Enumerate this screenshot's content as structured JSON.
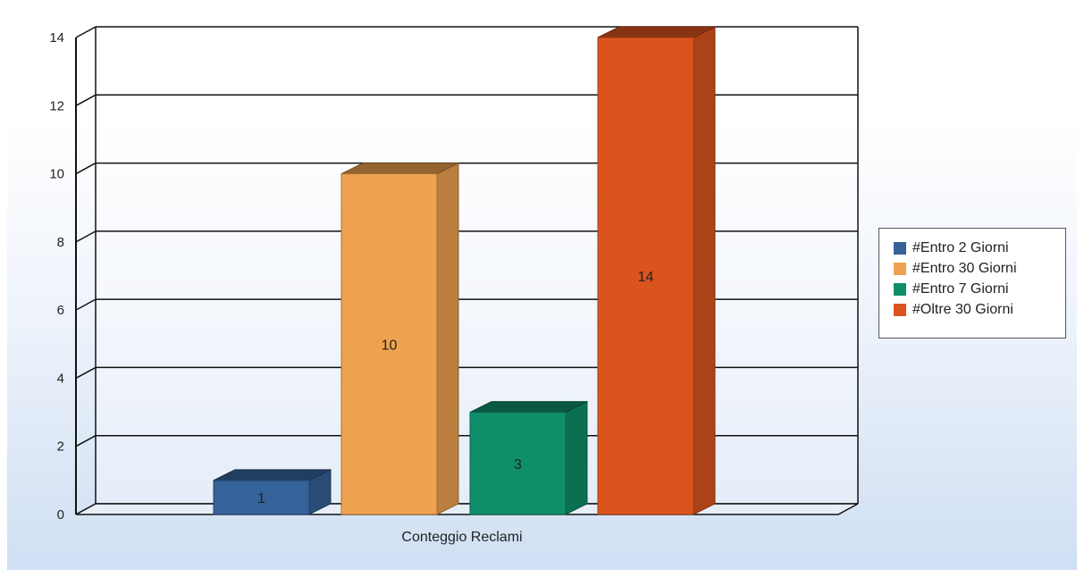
{
  "chart_data": {
    "type": "bar",
    "xlabel": "Conteggio Reclami",
    "ylim": [
      0,
      14
    ],
    "yticks": [
      0,
      2,
      4,
      6,
      8,
      10,
      12,
      14
    ],
    "grid": true,
    "legend_position": "right",
    "series": [
      {
        "name": "#Entro 2 Giorni",
        "values": [
          1
        ],
        "color": "#356299"
      },
      {
        "name": "#Entro 30 Giorni",
        "values": [
          10
        ],
        "color": "#eea24f"
      },
      {
        "name": "#Entro 7 Giorni",
        "values": [
          3
        ],
        "color": "#0e8e69"
      },
      {
        "name": "#Oltre 30 Giorni",
        "values": [
          14
        ],
        "color": "#dc541d"
      }
    ],
    "data_labels": [
      "1",
      "10",
      "3",
      "14"
    ]
  }
}
